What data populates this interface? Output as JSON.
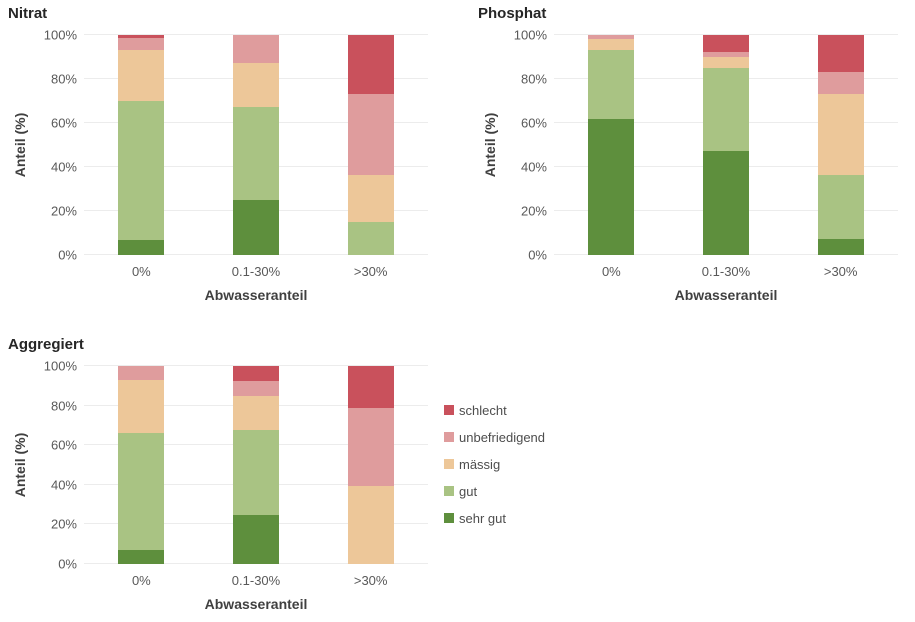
{
  "colors": {
    "schlecht": "#C9515C",
    "unbefriedigend": "#DF9C9D",
    "mässig": "#EDC799",
    "gut": "#A9C383",
    "sehr gut": "#5E8F3D"
  },
  "legend": {
    "items": [
      {
        "label": "schlecht",
        "color": "#C9515C"
      },
      {
        "label": "unbefriedigend",
        "color": "#DF9C9D"
      },
      {
        "label": "mässig",
        "color": "#EDC799"
      },
      {
        "label": "gut",
        "color": "#A9C383"
      },
      {
        "label": "sehr gut",
        "color": "#5E8F3D"
      }
    ]
  },
  "chart_data": [
    {
      "type": "bar",
      "variant": "stacked-100",
      "title": "Nitrat",
      "xlabel": "Abwasseranteil",
      "ylabel": "Anteil (%)",
      "categories": [
        "0%",
        "0.1-30%",
        ">30%"
      ],
      "y_ticks": [
        "100%",
        "80%",
        "60%",
        "40%",
        "20%",
        "0%"
      ],
      "ylim": [
        0,
        100
      ],
      "grid": true,
      "legend_position": "none",
      "series": [
        {
          "name": "sehr gut",
          "values": [
            7,
            25,
            0
          ]
        },
        {
          "name": "gut",
          "values": [
            63,
            42.5,
            15
          ]
        },
        {
          "name": "mässig",
          "values": [
            23,
            20,
            21.5
          ]
        },
        {
          "name": "unbefriedigend",
          "values": [
            5.5,
            12.5,
            36.5
          ]
        },
        {
          "name": "schlecht",
          "values": [
            1.5,
            0,
            27
          ]
        }
      ]
    },
    {
      "type": "bar",
      "variant": "stacked-100",
      "title": "Phosphat",
      "xlabel": "Abwasseranteil",
      "ylabel": "Anteil (%)",
      "categories": [
        "0%",
        "0.1-30%",
        ">30%"
      ],
      "y_ticks": [
        "100%",
        "80%",
        "60%",
        "40%",
        "20%",
        "0%"
      ],
      "ylim": [
        0,
        100
      ],
      "grid": true,
      "legend_position": "none",
      "series": [
        {
          "name": "sehr gut",
          "values": [
            62,
            47.5,
            7.5
          ]
        },
        {
          "name": "gut",
          "values": [
            31,
            37.5,
            29
          ]
        },
        {
          "name": "mässig",
          "values": [
            5,
            5,
            36.5
          ]
        },
        {
          "name": "unbefriedigend",
          "values": [
            2,
            2.5,
            10
          ]
        },
        {
          "name": "schlecht",
          "values": [
            0,
            7.5,
            17
          ]
        }
      ]
    },
    {
      "type": "bar",
      "variant": "stacked-100",
      "title": "Aggregiert",
      "xlabel": "Abwasseranteil",
      "ylabel": "Anteil (%)",
      "categories": [
        "0%",
        "0.1-30%",
        ">30%"
      ],
      "y_ticks": [
        "100%",
        "80%",
        "60%",
        "40%",
        "20%",
        "0%"
      ],
      "ylim": [
        0,
        100
      ],
      "grid": true,
      "legend_position": "right",
      "series": [
        {
          "name": "sehr gut",
          "values": [
            7,
            25,
            0
          ]
        },
        {
          "name": "gut",
          "values": [
            59,
            42.5,
            0
          ]
        },
        {
          "name": "mässig",
          "values": [
            27,
            17.5,
            39.5
          ]
        },
        {
          "name": "unbefriedigend",
          "values": [
            7,
            7.5,
            39.5
          ]
        },
        {
          "name": "schlecht",
          "values": [
            0,
            7.5,
            21
          ]
        }
      ]
    }
  ]
}
